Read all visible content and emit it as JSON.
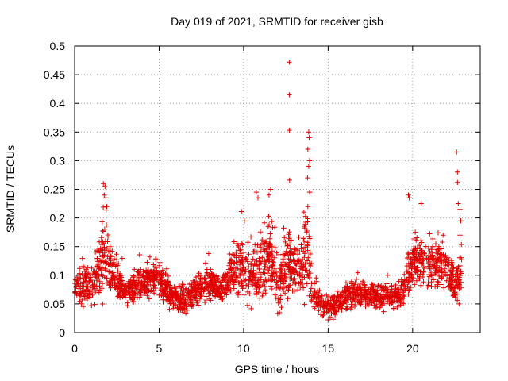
{
  "chart_data": {
    "type": "scatter",
    "title": "Day 019 of 2021, SRMTID for receiver gisb",
    "xlabel": "GPS time / hours",
    "ylabel": "SRMTID / TECUs",
    "xlim": [
      0,
      24
    ],
    "ylim": [
      0,
      0.5
    ],
    "xticks": [
      0,
      5,
      10,
      15,
      20
    ],
    "xtick_labels": [
      "0",
      "5",
      "10",
      "15",
      "20"
    ],
    "yticks": [
      0,
      0.05,
      0.1,
      0.15,
      0.2,
      0.25,
      0.3,
      0.35,
      0.4,
      0.45,
      0.5
    ],
    "ytick_labels": [
      "0",
      "0.05",
      "0.1",
      "0.15",
      "0.2",
      "0.25",
      "0.3",
      "0.35",
      "0.4",
      "0.45",
      "0.5"
    ],
    "grid": true,
    "marker": "+",
    "color": "#e00000",
    "series": [
      {
        "name": "SRMTID",
        "profile": [
          [
            0.0,
            0.075,
            0.02
          ],
          [
            0.3,
            0.085,
            0.03
          ],
          [
            0.6,
            0.08,
            0.03
          ],
          [
            1.0,
            0.08,
            0.03
          ],
          [
            1.4,
            0.11,
            0.04
          ],
          [
            1.8,
            0.15,
            0.07
          ],
          [
            2.1,
            0.11,
            0.04
          ],
          [
            2.5,
            0.09,
            0.03
          ],
          [
            3.0,
            0.07,
            0.02
          ],
          [
            3.5,
            0.075,
            0.02
          ],
          [
            4.0,
            0.085,
            0.025
          ],
          [
            4.5,
            0.09,
            0.025
          ],
          [
            5.0,
            0.095,
            0.03
          ],
          [
            5.5,
            0.075,
            0.025
          ],
          [
            6.0,
            0.06,
            0.02
          ],
          [
            6.5,
            0.055,
            0.02
          ],
          [
            7.0,
            0.065,
            0.02
          ],
          [
            7.5,
            0.08,
            0.025
          ],
          [
            8.0,
            0.085,
            0.025
          ],
          [
            8.5,
            0.075,
            0.02
          ],
          [
            9.0,
            0.085,
            0.025
          ],
          [
            9.5,
            0.11,
            0.04
          ],
          [
            10.0,
            0.12,
            0.05
          ],
          [
            10.5,
            0.09,
            0.04
          ],
          [
            11.0,
            0.11,
            0.05
          ],
          [
            11.5,
            0.13,
            0.05
          ],
          [
            12.0,
            0.09,
            0.04
          ],
          [
            12.5,
            0.11,
            0.05
          ],
          [
            13.0,
            0.12,
            0.05
          ],
          [
            13.5,
            0.11,
            0.05
          ],
          [
            13.8,
            0.15,
            0.07
          ],
          [
            14.0,
            0.08,
            0.03
          ],
          [
            14.5,
            0.05,
            0.02
          ],
          [
            15.0,
            0.045,
            0.02
          ],
          [
            15.5,
            0.05,
            0.02
          ],
          [
            16.0,
            0.06,
            0.02
          ],
          [
            16.5,
            0.065,
            0.02
          ],
          [
            17.0,
            0.07,
            0.02
          ],
          [
            17.5,
            0.065,
            0.02
          ],
          [
            18.0,
            0.06,
            0.02
          ],
          [
            18.5,
            0.065,
            0.02
          ],
          [
            19.0,
            0.065,
            0.02
          ],
          [
            19.5,
            0.075,
            0.025
          ],
          [
            20.0,
            0.12,
            0.04
          ],
          [
            20.5,
            0.13,
            0.04
          ],
          [
            21.0,
            0.12,
            0.04
          ],
          [
            21.5,
            0.12,
            0.04
          ],
          [
            22.0,
            0.11,
            0.04
          ],
          [
            22.5,
            0.08,
            0.03
          ],
          [
            22.9,
            0.1,
            0.04
          ]
        ],
        "outliers": [
          [
            12.7,
            0.472
          ],
          [
            12.7,
            0.415
          ],
          [
            12.7,
            0.353
          ],
          [
            12.72,
            0.266
          ],
          [
            13.85,
            0.35
          ],
          [
            13.88,
            0.34
          ],
          [
            13.8,
            0.32
          ],
          [
            13.9,
            0.3
          ],
          [
            13.85,
            0.29
          ],
          [
            13.78,
            0.27
          ],
          [
            13.9,
            0.245
          ],
          [
            13.8,
            0.22
          ],
          [
            1.7,
            0.26
          ],
          [
            1.8,
            0.255
          ],
          [
            1.75,
            0.24
          ],
          [
            1.85,
            0.235
          ],
          [
            1.9,
            0.22
          ],
          [
            10.75,
            0.245
          ],
          [
            10.85,
            0.235
          ],
          [
            11.6,
            0.25
          ],
          [
            11.5,
            0.24
          ],
          [
            19.75,
            0.24
          ],
          [
            19.8,
            0.235
          ],
          [
            20.5,
            0.225
          ],
          [
            22.6,
            0.315
          ],
          [
            22.65,
            0.28
          ],
          [
            22.65,
            0.262
          ],
          [
            22.7,
            0.225
          ],
          [
            22.8,
            0.215
          ],
          [
            22.85,
            0.195
          ],
          [
            22.8,
            0.17
          ]
        ]
      }
    ]
  }
}
